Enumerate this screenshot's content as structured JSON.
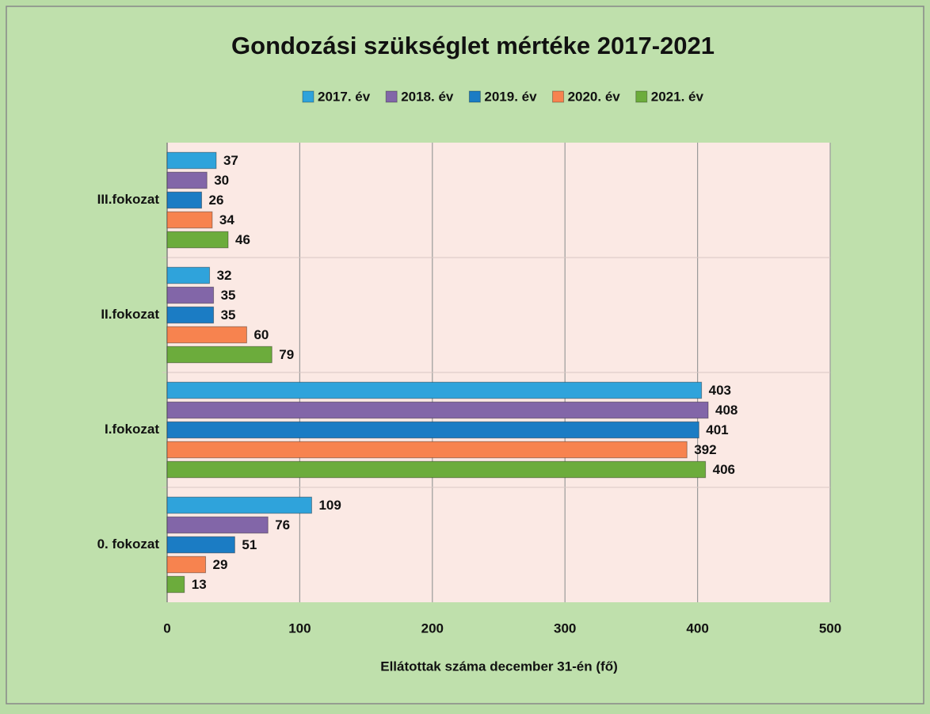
{
  "chart_data": {
    "type": "bar",
    "orientation": "horizontal",
    "title": "Gondozási szükséglet mértéke 2017-2021",
    "xlabel": "Ellátottak száma december 31-én (fő)",
    "categories": [
      "III.fokozat",
      "II.fokozat",
      "I.fokozat",
      "0. fokozat"
    ],
    "series": [
      {
        "name": "2017. év",
        "color": "#2fa3db",
        "values": [
          37,
          32,
          403,
          109
        ]
      },
      {
        "name": "2018. év",
        "color": "#8266a8",
        "values": [
          30,
          35,
          408,
          76
        ]
      },
      {
        "name": "2019. év",
        "color": "#1b7cc4",
        "values": [
          26,
          35,
          401,
          51
        ]
      },
      {
        "name": "2020. év",
        "color": "#f7834f",
        "values": [
          34,
          60,
          392,
          29
        ]
      },
      {
        "name": "2021. év",
        "color": "#6cac3c",
        "values": [
          46,
          79,
          406,
          13
        ]
      }
    ],
    "xlim": [
      0,
      500
    ],
    "xticks": [
      0,
      100,
      200,
      300,
      400,
      500
    ],
    "grid": true,
    "legend": "top"
  }
}
